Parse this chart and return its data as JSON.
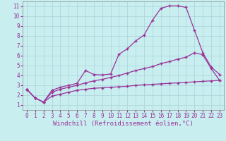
{
  "xlabel": "Windchill (Refroidissement éolien,°C)",
  "bg_color": "#c8eef0",
  "grid_color": "#aad4d8",
  "line_color": "#993399",
  "xlim": [
    -0.5,
    23.5
  ],
  "ylim": [
    0.5,
    11.5
  ],
  "xticks": [
    0,
    1,
    2,
    3,
    4,
    5,
    6,
    7,
    8,
    9,
    10,
    11,
    12,
    13,
    14,
    15,
    16,
    17,
    18,
    19,
    20,
    21,
    22,
    23
  ],
  "yticks": [
    1,
    2,
    3,
    4,
    5,
    6,
    7,
    8,
    9,
    10,
    11
  ],
  "line1_x": [
    0,
    1,
    2,
    3,
    4,
    5,
    6,
    7,
    8,
    9,
    10,
    11,
    12,
    13,
    14,
    15,
    16,
    17,
    18,
    19,
    20,
    21,
    22,
    23
  ],
  "line1_y": [
    2.6,
    1.7,
    1.3,
    2.5,
    2.8,
    3.0,
    3.2,
    4.5,
    4.1,
    4.05,
    4.15,
    6.15,
    6.7,
    7.5,
    8.1,
    9.6,
    10.8,
    11.05,
    11.05,
    10.9,
    8.6,
    6.3,
    4.85,
    4.1
  ],
  "line2_x": [
    0,
    1,
    2,
    3,
    4,
    5,
    6,
    7,
    8,
    9,
    10,
    11,
    12,
    13,
    14,
    15,
    16,
    17,
    18,
    19,
    20,
    21,
    22,
    23
  ],
  "line2_y": [
    2.6,
    1.7,
    1.3,
    2.3,
    2.6,
    2.8,
    3.0,
    3.25,
    3.45,
    3.6,
    3.8,
    4.0,
    4.25,
    4.5,
    4.7,
    4.9,
    5.2,
    5.4,
    5.65,
    5.85,
    6.3,
    6.1,
    4.7,
    3.5
  ],
  "line3_x": [
    0,
    1,
    2,
    3,
    4,
    5,
    6,
    7,
    8,
    9,
    10,
    11,
    12,
    13,
    14,
    15,
    16,
    17,
    18,
    19,
    20,
    21,
    22,
    23
  ],
  "line3_y": [
    2.6,
    1.7,
    1.3,
    1.9,
    2.1,
    2.3,
    2.5,
    2.6,
    2.7,
    2.75,
    2.8,
    2.85,
    2.9,
    3.0,
    3.05,
    3.1,
    3.15,
    3.2,
    3.25,
    3.3,
    3.35,
    3.4,
    3.45,
    3.5
  ],
  "marker": "+",
  "markersize": 3,
  "markeredgewidth": 1.0,
  "linewidth": 0.9,
  "tick_fontsize": 5.5,
  "xlabel_fontsize": 6.5
}
